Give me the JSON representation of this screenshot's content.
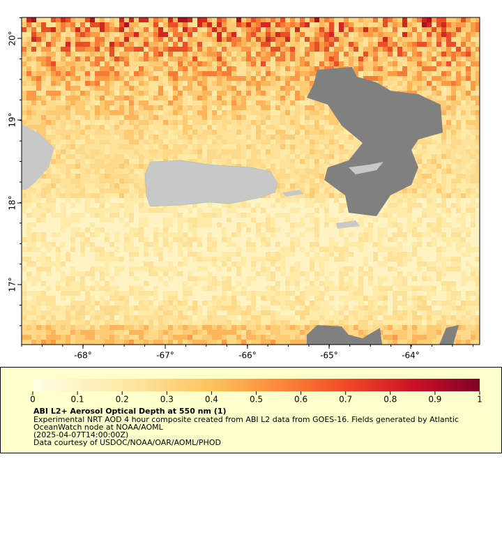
{
  "map": {
    "x_ticks": [
      "-68°",
      "-67°",
      "-66°",
      "-65°",
      "-64°"
    ],
    "y_ticks": [
      "20°",
      "19°",
      "18°",
      "17°"
    ]
  },
  "legend": {
    "colorbar_ticks": [
      0,
      0.1,
      0.2,
      0.3,
      0.4,
      0.5,
      0.6,
      0.7,
      0.8,
      0.9,
      1
    ],
    "title": "ABI L2+ Aerosol Optical Depth at 550 nm (1)",
    "lines": [
      "Experimental NRT AOD 4 hour composite created from ABI L2 data from GOES-16. Fields generated by Atlantic",
      "OceanWatch node at NOAA/AOML",
      "(2025-04-07T14:00:00Z)",
      "Data courtesy of USDOC/NOAA/OAR/AOML/PHOD"
    ]
  }
}
